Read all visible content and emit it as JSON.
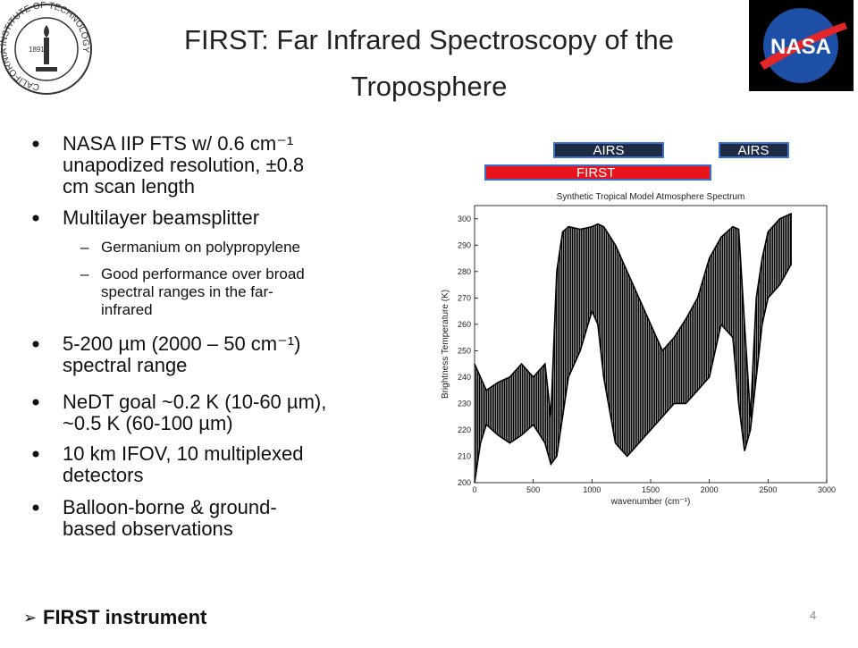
{
  "header": {
    "title_lines": [
      "FIRST: Far Infrared Spectroscopy of the",
      "Troposphere"
    ]
  },
  "logos": {
    "caltech_ring": "CALIFORNIA INSTITUTE OF TECHNOLOGY",
    "caltech_year": "1891",
    "nasa": "NASA"
  },
  "bullets": [
    {
      "lines": [
        "NASA IIP FTS w/ 0.6 cm⁻¹",
        "unapodized resolution, ±0.8",
        "cm scan length"
      ]
    },
    {
      "lines": [
        "Multilayer beamsplitter"
      ],
      "sub": [
        {
          "lines": [
            "Germanium on polypropylene"
          ]
        },
        {
          "lines": [
            "Good performance over broad",
            "spectral ranges in the far-",
            "infrared"
          ]
        }
      ]
    },
    {
      "lines": [
        "5-200 µm (2000 – 50 cm⁻¹)",
        "spectral range"
      ]
    },
    {
      "lines": [
        "NeDT goal ~0.2 K (10-60 µm),",
        "~0.5 K (60-100 µm)"
      ]
    },
    {
      "lines": [
        "10 km IFOV, 10 multiplexed",
        "detectors"
      ]
    },
    {
      "lines": [
        "Balloon-borne & ground-",
        "based observations"
      ]
    }
  ],
  "footer": {
    "link": "FIRST instrument",
    "page": "4"
  },
  "range_bars": [
    "AIRS",
    "AIRS",
    "FIRST"
  ],
  "chart_data": {
    "type": "band",
    "title": "Synthetic Tropical Model Atmosphere Spectrum",
    "x_label": "wavenumber (cm⁻¹)",
    "y_label": "Brightness Temperature (K)",
    "color": "#000000",
    "xlim": [
      0,
      3000
    ],
    "ylim": [
      200,
      305
    ],
    "xticks": [
      0,
      500,
      1000,
      1500,
      2000,
      2500,
      3000
    ],
    "yticks": [
      200,
      210,
      220,
      230,
      240,
      250,
      260,
      270,
      280,
      290,
      300
    ],
    "spectrum": {
      "x": [
        0,
        50,
        100,
        200,
        300,
        400,
        500,
        600,
        650,
        700,
        750,
        800,
        900,
        1000,
        1050,
        1100,
        1200,
        1300,
        1400,
        1500,
        1600,
        1700,
        1800,
        1900,
        2000,
        2100,
        2200,
        2250,
        2300,
        2350,
        2400,
        2450,
        2500,
        2600,
        2700
      ],
      "max": [
        245,
        240,
        235,
        238,
        240,
        245,
        240,
        245,
        225,
        280,
        295,
        297,
        296,
        297,
        298,
        297,
        290,
        280,
        270,
        260,
        250,
        255,
        262,
        270,
        285,
        293,
        297,
        296,
        260,
        225,
        270,
        285,
        295,
        300,
        302
      ],
      "min": [
        200,
        215,
        222,
        218,
        215,
        218,
        222,
        215,
        207,
        210,
        225,
        240,
        250,
        265,
        260,
        240,
        215,
        210,
        215,
        220,
        225,
        230,
        230,
        235,
        240,
        260,
        255,
        230,
        212,
        220,
        240,
        260,
        270,
        275,
        283
      ]
    }
  }
}
